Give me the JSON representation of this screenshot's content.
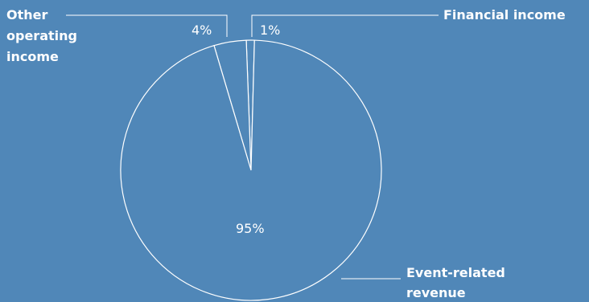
{
  "chart_data": {
    "type": "pie",
    "slices": [
      {
        "name": "Event-related revenue",
        "value": 95,
        "label": "95%"
      },
      {
        "name": "Other operating income",
        "value": 4,
        "label": "4%"
      },
      {
        "name": "Financial income",
        "value": 1,
        "label": "1%"
      }
    ],
    "legend_lines": {
      "event": [
        "Event-related",
        "revenue"
      ],
      "other": [
        "Other",
        "operating",
        "income"
      ],
      "financial": [
        "Financial income"
      ]
    },
    "colors": {
      "background": "#5087b8",
      "lines": "#ffffff"
    }
  }
}
